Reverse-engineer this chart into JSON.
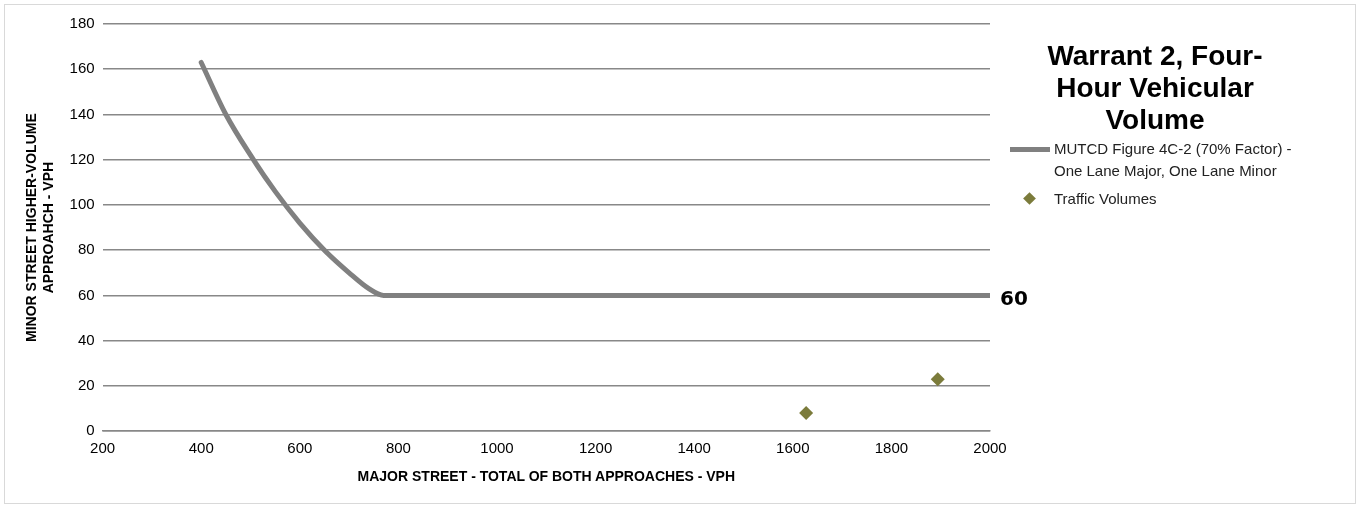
{
  "chart_data": {
    "type": "line",
    "title": "Warrant 2, Four-Hour Vehicular Volume",
    "xlabel": "MAJOR STREET - TOTAL OF BOTH APPROACHES - VPH",
    "ylabel": "MINOR STREET HIGHER-VOLUME APPROAHCH - VPH",
    "xlim": [
      200,
      2000
    ],
    "xticks": [
      200,
      400,
      600,
      800,
      1000,
      1200,
      1400,
      1600,
      1800,
      2000
    ],
    "ylim": [
      0,
      180
    ],
    "yticks": [
      0,
      20,
      40,
      60,
      80,
      100,
      120,
      140,
      160,
      180
    ],
    "grid": "y",
    "legend": "right",
    "line_style": "solid",
    "series": [
      {
        "name": "MUTCD Figure 4C-2 (70% Factor) - One Lane Major, One Lane Minor",
        "type": "line",
        "color": "#808080",
        "marker": "none",
        "x": [
          400,
          450,
          500,
          550,
          600,
          650,
          700,
          740,
          770,
          2000
        ],
        "values": [
          163,
          140,
          122,
          106,
          92,
          80,
          70,
          63,
          60,
          60
        ]
      },
      {
        "name": "Traffic Volumes",
        "type": "scatter",
        "color": "#7b7b3b",
        "marker": "diamond",
        "x": [
          1627,
          1894
        ],
        "values": [
          8,
          23
        ]
      }
    ],
    "annotations": [
      {
        "text": "60",
        "x": 2000,
        "y": 60
      }
    ]
  }
}
